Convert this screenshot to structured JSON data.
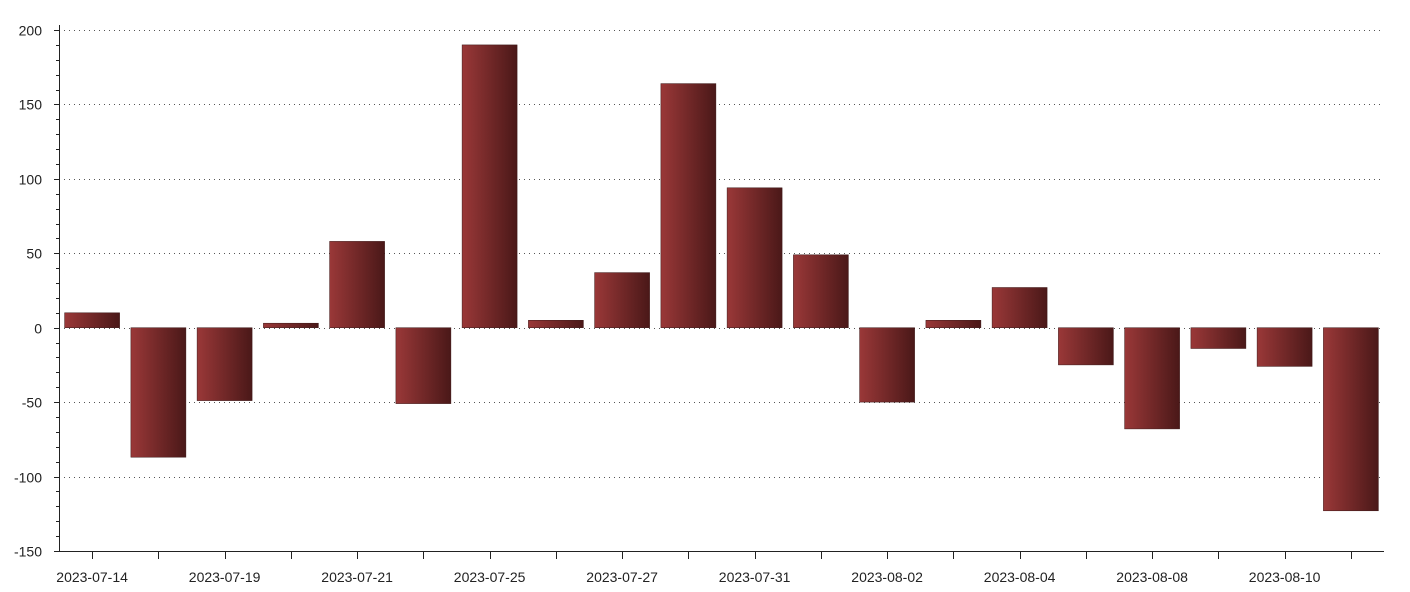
{
  "chart_data": {
    "type": "bar",
    "title": "",
    "xlabel": "",
    "ylabel": "",
    "ylim": [
      -150,
      200
    ],
    "yticks": [
      200,
      150,
      100,
      50,
      0,
      -50,
      -100,
      -150
    ],
    "grid": true,
    "x_tick_labels": [
      "2023-07-14",
      "2023-07-19",
      "2023-07-21",
      "2023-07-25",
      "2023-07-27",
      "2023-07-31",
      "2023-08-02",
      "2023-08-04",
      "2023-08-08",
      "2023-08-10"
    ],
    "values": [
      10,
      -87,
      -49,
      3,
      58,
      -51,
      190,
      5,
      37,
      164,
      94,
      49,
      -50,
      5,
      27,
      -25,
      -68,
      -14,
      -26,
      -123
    ],
    "colors": {
      "bar_light": "#9a3838",
      "bar_dark": "#4a1818",
      "axis": "#222222",
      "grid": "#555555"
    }
  }
}
